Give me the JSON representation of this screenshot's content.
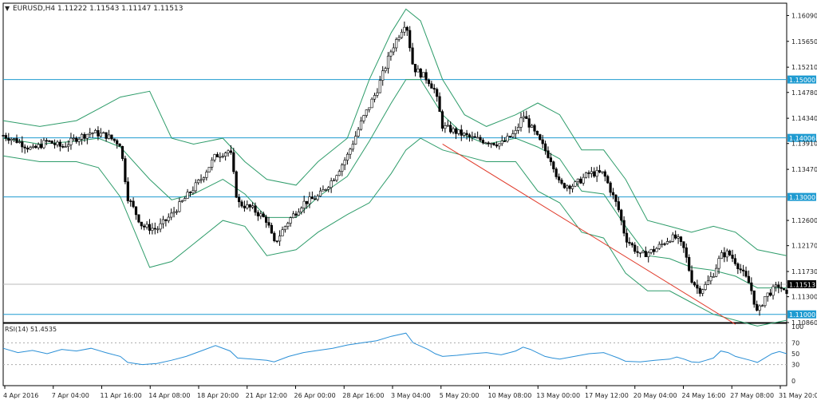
{
  "header": {
    "arrow": "▼",
    "symbol_tf": "EURUSD,H4",
    "ohlc": "1.11222 1.11543 1.11147 1.11513"
  },
  "rsi_panel": {
    "label": "RSI(14) 51.4535",
    "levels": [
      "100",
      "70",
      "50",
      "30",
      "0"
    ]
  },
  "chart_data": [
    {
      "type": "candlestick",
      "title": "EURUSD,H4",
      "ylim": [
        1.1086,
        1.163
      ],
      "y_ticks": [
        "1.16090",
        "1.15650",
        "1.15210",
        "1.14780",
        "1.14340",
        "1.13910",
        "1.13470",
        "1.12600",
        "1.12170",
        "1.11730",
        "1.11300",
        "1.10860"
      ],
      "x_ticks": [
        "4 Apr 2016",
        "7 Apr 04:00",
        "11 Apr 16:00",
        "14 Apr 08:00",
        "18 Apr 20:00",
        "21 Apr 12:00",
        "26 Apr 00:00",
        "28 Apr 16:00",
        "3 May 04:00",
        "5 May 20:00",
        "10 May 08:00",
        "13 May 00:00",
        "17 May 12:00",
        "20 May 04:00",
        "24 May 16:00",
        "27 May 08:00",
        "31 May 20:00"
      ],
      "horizontal_levels": [
        {
          "value": 1.15,
          "label": "1.15000"
        },
        {
          "value": 1.14006,
          "label": "1.14006"
        },
        {
          "value": 1.13,
          "label": "1.13000"
        },
        {
          "value": 1.11,
          "label": "1.11000"
        }
      ],
      "current_price": {
        "value": 1.11513,
        "label": "1.11513"
      },
      "trendline": {
        "from": [
          0.6,
          1.139
        ],
        "to": [
          1.0,
          1.1083
        ]
      },
      "close_path": [
        [
          0.0,
          1.1405
        ],
        [
          0.02,
          1.1395
        ],
        [
          0.04,
          1.138
        ],
        [
          0.06,
          1.1395
        ],
        [
          0.08,
          1.1385
        ],
        [
          0.1,
          1.14
        ],
        [
          0.12,
          1.141
        ],
        [
          0.14,
          1.1405
        ],
        [
          0.16,
          1.139
        ],
        [
          0.17,
          1.13
        ],
        [
          0.19,
          1.125
        ],
        [
          0.21,
          1.1245
        ],
        [
          0.23,
          1.127
        ],
        [
          0.25,
          1.13
        ],
        [
          0.27,
          1.133
        ],
        [
          0.29,
          1.137
        ],
        [
          0.31,
          1.138
        ],
        [
          0.32,
          1.129
        ],
        [
          0.34,
          1.128
        ],
        [
          0.36,
          1.126
        ],
        [
          0.37,
          1.122
        ],
        [
          0.39,
          1.126
        ],
        [
          0.41,
          1.129
        ],
        [
          0.43,
          1.13
        ],
        [
          0.45,
          1.133
        ],
        [
          0.47,
          1.137
        ],
        [
          0.49,
          1.143
        ],
        [
          0.51,
          1.148
        ],
        [
          0.53,
          1.155
        ],
        [
          0.55,
          1.16
        ],
        [
          0.56,
          1.152
        ],
        [
          0.58,
          1.15
        ],
        [
          0.59,
          1.148
        ],
        [
          0.6,
          1.142
        ],
        [
          0.62,
          1.141
        ],
        [
          0.64,
          1.14
        ],
        [
          0.66,
          1.1395
        ],
        [
          0.68,
          1.139
        ],
        [
          0.7,
          1.141
        ],
        [
          0.71,
          1.144
        ],
        [
          0.72,
          1.142
        ],
        [
          0.74,
          1.138
        ],
        [
          0.75,
          1.136
        ],
        [
          0.76,
          1.132
        ],
        [
          0.78,
          1.132
        ],
        [
          0.8,
          1.134
        ],
        [
          0.82,
          1.134
        ],
        [
          0.84,
          1.128
        ],
        [
          0.85,
          1.123
        ],
        [
          0.87,
          1.12
        ],
        [
          0.89,
          1.121
        ],
        [
          0.91,
          1.123
        ],
        [
          0.92,
          1.123
        ],
        [
          0.93,
          1.121
        ],
        [
          0.94,
          1.116
        ],
        [
          0.95,
          1.114
        ],
        [
          0.96,
          1.115
        ],
        [
          0.97,
          1.117
        ],
        [
          0.98,
          1.12
        ],
        [
          0.99,
          1.1205
        ],
        [
          1.0,
          1.119
        ],
        [
          1.02,
          1.115
        ],
        [
          1.03,
          1.11
        ],
        [
          1.04,
          1.113
        ],
        [
          1.05,
          1.114
        ],
        [
          1.06,
          1.115
        ],
        [
          1.07,
          1.113
        ]
      ],
      "bollinger": {
        "upper": [
          [
            0.0,
            1.143
          ],
          [
            0.05,
            1.142
          ],
          [
            0.1,
            1.143
          ],
          [
            0.13,
            1.145
          ],
          [
            0.16,
            1.147
          ],
          [
            0.2,
            1.148
          ],
          [
            0.23,
            1.14
          ],
          [
            0.26,
            1.139
          ],
          [
            0.3,
            1.14
          ],
          [
            0.33,
            1.136
          ],
          [
            0.36,
            1.133
          ],
          [
            0.4,
            1.132
          ],
          [
            0.43,
            1.136
          ],
          [
            0.47,
            1.14
          ],
          [
            0.5,
            1.15
          ],
          [
            0.53,
            1.158
          ],
          [
            0.55,
            1.162
          ],
          [
            0.57,
            1.16
          ],
          [
            0.6,
            1.15
          ],
          [
            0.63,
            1.144
          ],
          [
            0.66,
            1.142
          ],
          [
            0.7,
            1.144
          ],
          [
            0.73,
            1.146
          ],
          [
            0.76,
            1.144
          ],
          [
            0.79,
            1.138
          ],
          [
            0.82,
            1.138
          ],
          [
            0.85,
            1.133
          ],
          [
            0.88,
            1.126
          ],
          [
            0.91,
            1.125
          ],
          [
            0.94,
            1.124
          ],
          [
            0.97,
            1.125
          ],
          [
            1.0,
            1.124
          ],
          [
            1.03,
            1.121
          ],
          [
            1.07,
            1.12
          ]
        ],
        "lower": [
          [
            0.0,
            1.137
          ],
          [
            0.05,
            1.136
          ],
          [
            0.1,
            1.136
          ],
          [
            0.13,
            1.135
          ],
          [
            0.16,
            1.13
          ],
          [
            0.2,
            1.118
          ],
          [
            0.23,
            1.119
          ],
          [
            0.26,
            1.122
          ],
          [
            0.3,
            1.126
          ],
          [
            0.33,
            1.125
          ],
          [
            0.36,
            1.12
          ],
          [
            0.4,
            1.121
          ],
          [
            0.43,
            1.124
          ],
          [
            0.47,
            1.127
          ],
          [
            0.5,
            1.129
          ],
          [
            0.53,
            1.134
          ],
          [
            0.55,
            1.138
          ],
          [
            0.57,
            1.14
          ],
          [
            0.6,
            1.138
          ],
          [
            0.63,
            1.137
          ],
          [
            0.66,
            1.136
          ],
          [
            0.7,
            1.136
          ],
          [
            0.73,
            1.131
          ],
          [
            0.76,
            1.129
          ],
          [
            0.79,
            1.124
          ],
          [
            0.82,
            1.123
          ],
          [
            0.85,
            1.117
          ],
          [
            0.88,
            1.114
          ],
          [
            0.91,
            1.114
          ],
          [
            0.94,
            1.112
          ],
          [
            0.97,
            1.11
          ],
          [
            1.0,
            1.109
          ],
          [
            1.03,
            1.108
          ],
          [
            1.07,
            1.109
          ]
        ]
      }
    },
    {
      "type": "line",
      "title": "RSI(14) 51.4535",
      "ylim": [
        0,
        100
      ],
      "y_ticks": [
        100,
        70,
        50,
        30,
        0
      ],
      "values": [
        [
          0.0,
          60
        ],
        [
          0.02,
          52
        ],
        [
          0.04,
          56
        ],
        [
          0.06,
          50
        ],
        [
          0.08,
          58
        ],
        [
          0.1,
          55
        ],
        [
          0.12,
          60
        ],
        [
          0.14,
          52
        ],
        [
          0.16,
          45
        ],
        [
          0.17,
          34
        ],
        [
          0.19,
          30
        ],
        [
          0.21,
          32
        ],
        [
          0.23,
          38
        ],
        [
          0.25,
          45
        ],
        [
          0.27,
          55
        ],
        [
          0.29,
          65
        ],
        [
          0.31,
          55
        ],
        [
          0.32,
          42
        ],
        [
          0.34,
          40
        ],
        [
          0.36,
          38
        ],
        [
          0.37,
          35
        ],
        [
          0.39,
          45
        ],
        [
          0.41,
          52
        ],
        [
          0.43,
          56
        ],
        [
          0.45,
          60
        ],
        [
          0.47,
          66
        ],
        [
          0.49,
          70
        ],
        [
          0.51,
          74
        ],
        [
          0.53,
          82
        ],
        [
          0.55,
          88
        ],
        [
          0.56,
          70
        ],
        [
          0.58,
          58
        ],
        [
          0.59,
          50
        ],
        [
          0.6,
          45
        ],
        [
          0.62,
          47
        ],
        [
          0.64,
          50
        ],
        [
          0.66,
          52
        ],
        [
          0.68,
          48
        ],
        [
          0.7,
          55
        ],
        [
          0.71,
          62
        ],
        [
          0.72,
          58
        ],
        [
          0.74,
          45
        ],
        [
          0.75,
          42
        ],
        [
          0.76,
          40
        ],
        [
          0.78,
          45
        ],
        [
          0.8,
          50
        ],
        [
          0.82,
          52
        ],
        [
          0.84,
          42
        ],
        [
          0.85,
          36
        ],
        [
          0.87,
          35
        ],
        [
          0.89,
          38
        ],
        [
          0.91,
          40
        ],
        [
          0.92,
          44
        ],
        [
          0.93,
          40
        ],
        [
          0.94,
          35
        ],
        [
          0.95,
          34
        ],
        [
          0.96,
          38
        ],
        [
          0.97,
          42
        ],
        [
          0.98,
          55
        ],
        [
          0.99,
          52
        ],
        [
          1.0,
          45
        ],
        [
          1.02,
          38
        ],
        [
          1.03,
          34
        ],
        [
          1.04,
          42
        ],
        [
          1.05,
          50
        ],
        [
          1.06,
          54
        ],
        [
          1.07,
          50
        ]
      ]
    }
  ]
}
